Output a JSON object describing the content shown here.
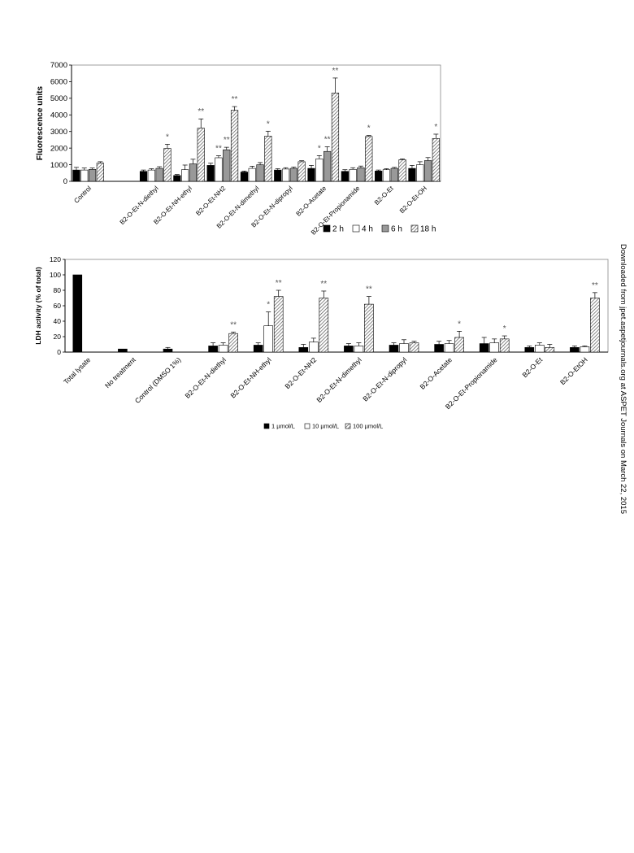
{
  "side_note": "Downloaded from jpet.aspetjournals.org at ASPET Journals on March 22, 2015",
  "chart_data": [
    {
      "type": "bar",
      "ylabel": "Fluorescence units",
      "xlabel": "",
      "ylim": [
        0,
        7000
      ],
      "yticks": [
        0,
        1000,
        2000,
        3000,
        4000,
        5000,
        6000,
        7000
      ],
      "categories": [
        "Control",
        "",
        "B2-O-Et-N-diethyl",
        "B2-O-Et-NH-ethyl",
        "B2-O-Et-NH2",
        "B2-O-Et-N-dimethyl",
        "B2-O-Et-N-dipropyl",
        "B2-O-Acetate",
        "B2-O-Et-Propionamide",
        "B2-O-Et",
        "B2-O-Et-OH"
      ],
      "series": [
        {
          "name": "2 h",
          "fill": "#000000",
          "values": [
            680,
            null,
            600,
            350,
            960,
            560,
            680,
            780,
            600,
            620,
            780
          ],
          "errors": [
            160,
            null,
            80,
            60,
            130,
            60,
            80,
            180,
            100,
            60,
            180
          ]
        },
        {
          "name": "4 h",
          "fill": "#ffffff",
          "values": [
            680,
            null,
            680,
            700,
            1420,
            780,
            740,
            1350,
            720,
            700,
            1000
          ],
          "errors": [
            120,
            null,
            80,
            280,
            120,
            130,
            80,
            200,
            100,
            60,
            180
          ]
        },
        {
          "name": "6 h",
          "fill": "#999999",
          "values": [
            720,
            null,
            780,
            1050,
            1900,
            1000,
            780,
            1800,
            820,
            780,
            1250
          ],
          "errors": [
            80,
            null,
            100,
            280,
            150,
            130,
            80,
            280,
            100,
            60,
            180
          ]
        },
        {
          "name": "18 h",
          "fill": "hatch",
          "values": [
            1100,
            null,
            1980,
            3200,
            4280,
            2720,
            1180,
            5320,
            2700,
            1300,
            2580
          ],
          "errors": [
            80,
            null,
            250,
            560,
            220,
            300,
            60,
            900,
            60,
            50,
            260
          ]
        }
      ],
      "annotations": [
        {
          "category": 2,
          "series": 3,
          "text": "*"
        },
        {
          "category": 3,
          "series": 3,
          "text": "**"
        },
        {
          "category": 4,
          "series": 1,
          "text": "**"
        },
        {
          "category": 4,
          "series": 2,
          "text": "**"
        },
        {
          "category": 4,
          "series": 3,
          "text": "**"
        },
        {
          "category": 5,
          "series": 3,
          "text": "*"
        },
        {
          "category": 7,
          "series": 1,
          "text": "*"
        },
        {
          "category": 7,
          "series": 2,
          "text": "**"
        },
        {
          "category": 7,
          "series": 3,
          "text": "**"
        },
        {
          "category": 8,
          "series": 3,
          "text": "*"
        },
        {
          "category": 10,
          "series": 3,
          "text": "*"
        }
      ],
      "legend_placement": "bottom-right",
      "grid": false
    },
    {
      "type": "bar",
      "ylabel": "LDH activity (% of total)",
      "xlabel": "",
      "ylim": [
        0,
        120
      ],
      "yticks": [
        0,
        20,
        40,
        60,
        80,
        100,
        120
      ],
      "categories": [
        "Total lysate",
        "No treatment",
        "Control (DMSO 1%)",
        "B2-O-Et-N-diethyl",
        "B2-O-Et-NH-ethyl",
        "B2-O-Et-NH2",
        "B2-O-Et-N-dimethyl",
        "B2-O-Et-N-dipropyl",
        "B2-O-Acetate",
        "B2-O-Et-Propionamide",
        "B2-O-Et",
        "B2-O-EtOH"
      ],
      "series": [
        {
          "name": "1 µmol/L",
          "fill": "#000000",
          "values": [
            100,
            4,
            4,
            8,
            9,
            6,
            8,
            9,
            10,
            11,
            6,
            6
          ],
          "errors": [
            0,
            0,
            2,
            4,
            3,
            4,
            3,
            3,
            4,
            8,
            2,
            2
          ]
        },
        {
          "name": "10 µmol/L",
          "fill": "#ffffff",
          "values": [
            null,
            null,
            null,
            9,
            34,
            13,
            8,
            11,
            11,
            12,
            9,
            7
          ],
          "errors": [
            null,
            null,
            null,
            3,
            18,
            5,
            4,
            5,
            4,
            5,
            3,
            1
          ]
        },
        {
          "name": "100 µmol/L",
          "fill": "hatch",
          "values": [
            null,
            null,
            null,
            24,
            72,
            70,
            62,
            12,
            19,
            17,
            6,
            70
          ],
          "errors": [
            null,
            null,
            null,
            2,
            8,
            9,
            10,
            2,
            8,
            4,
            4,
            7
          ]
        }
      ],
      "annotations": [
        {
          "category": 3,
          "series": 2,
          "text": "**"
        },
        {
          "category": 4,
          "series": 1,
          "text": "*"
        },
        {
          "category": 4,
          "series": 2,
          "text": "**"
        },
        {
          "category": 5,
          "series": 2,
          "text": "**"
        },
        {
          "category": 6,
          "series": 2,
          "text": "**"
        },
        {
          "category": 8,
          "series": 2,
          "text": "*"
        },
        {
          "category": 9,
          "series": 2,
          "text": "*"
        },
        {
          "category": 11,
          "series": 2,
          "text": "**"
        }
      ],
      "legend_placement": "bottom-center",
      "grid": false
    }
  ]
}
